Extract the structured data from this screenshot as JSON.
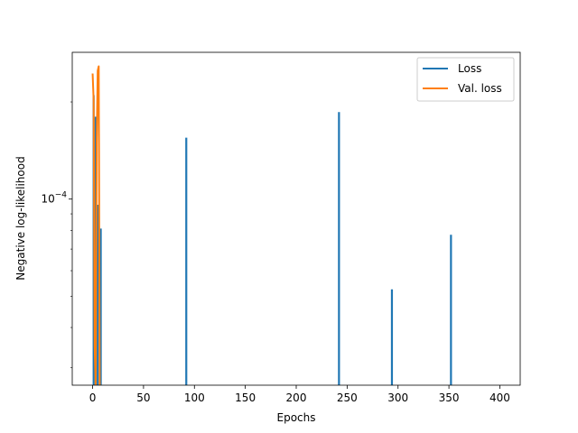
{
  "chart_data": {
    "type": "line",
    "title": "",
    "xlabel": "Epochs",
    "ylabel": "Negative log-likelihood",
    "yscale": "log",
    "xlim": [
      -20,
      420
    ],
    "ylim": [
      2.65e-05,
      0.000285
    ],
    "x_ticks": [
      0,
      50,
      100,
      150,
      200,
      250,
      300,
      350,
      400
    ],
    "y_ticks": [
      {
        "value": 0.0001,
        "base": "10",
        "exp": "−4"
      }
    ],
    "grid": false,
    "legend_position": "top-right",
    "series": [
      {
        "name": "Loss",
        "color": "#1f77b4",
        "spikes": [
          {
            "x": 1,
            "y": 0.00021
          },
          {
            "x": 3,
            "y": 0.00018
          },
          {
            "x": 5,
            "y": 9.6e-05
          },
          {
            "x": 8,
            "y": 8.1e-05
          },
          {
            "x": 92,
            "y": 0.000155
          },
          {
            "x": 242,
            "y": 0.000186
          },
          {
            "x": 294,
            "y": 5.25e-05
          },
          {
            "x": 352,
            "y": 7.75e-05
          }
        ],
        "baseline": 2.65e-05
      },
      {
        "name": "Val. loss",
        "color": "#ff7f0e",
        "points": [
          [
            0,
            0.000245
          ],
          [
            1,
            0.000203
          ],
          [
            2,
            3.5e-05
          ],
          [
            3,
            2.6e-05
          ],
          [
            4,
            0.00015
          ],
          [
            5,
            0.00025
          ],
          [
            6,
            0.000258
          ],
          [
            7,
            2.6e-05
          ]
        ]
      }
    ]
  }
}
